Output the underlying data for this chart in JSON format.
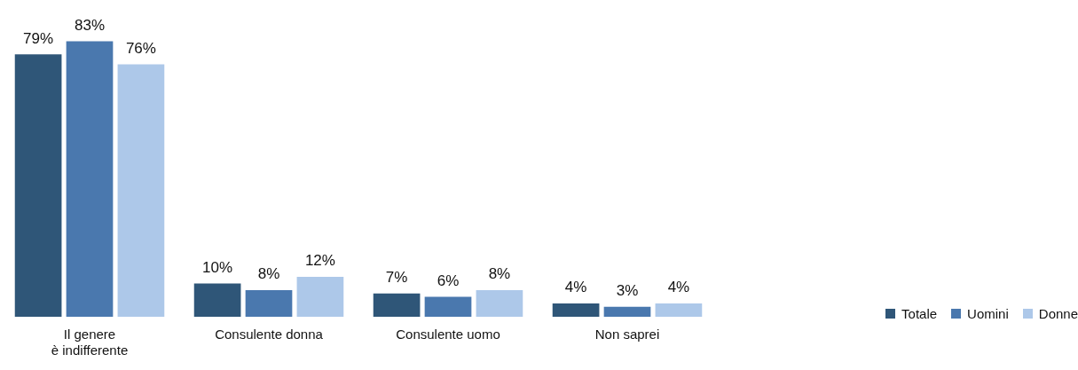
{
  "chart_data": {
    "type": "bar",
    "categories": [
      "Il genere\nè indifferente",
      "Consulente donna",
      "Consulente uomo",
      "Non saprei"
    ],
    "series": [
      {
        "name": "Totale",
        "color": "#2f5678",
        "values": [
          79,
          10,
          7,
          4
        ],
        "value_labels": [
          "79%",
          "10%",
          "7%",
          "4%"
        ]
      },
      {
        "name": "Uomini",
        "color": "#4a78ae",
        "values": [
          83,
          8,
          6,
          3
        ],
        "value_labels": [
          "83%",
          "8%",
          "6%",
          "3%"
        ]
      },
      {
        "name": "Donne",
        "color": "#adc8e9",
        "values": [
          76,
          12,
          8,
          4
        ],
        "value_labels": [
          "76%",
          "12%",
          "8%",
          "4%"
        ]
      }
    ],
    "legend": "bottom right",
    "grid": false
  }
}
